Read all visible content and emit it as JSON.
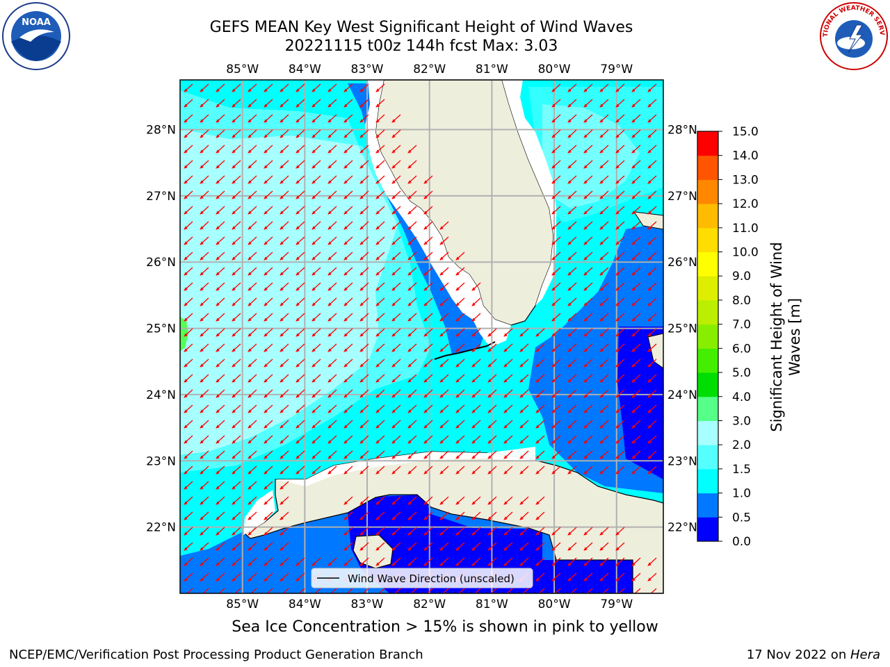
{
  "title_line1": "GEFS MEAN Key West Significant Height of Wind Waves",
  "title_line2": "20221115 t00z 144h fcst   Max: 3.03",
  "logos": {
    "left": "NOAA",
    "right": "NATIONAL WEATHER SERVICE"
  },
  "map": {
    "lon_range": [
      -86.0,
      -78.25
    ],
    "lat_range": [
      21.0,
      28.75
    ],
    "lon_ticks": [
      "85°W",
      "84°W",
      "83°W",
      "82°W",
      "81°W",
      "80°W",
      "79°W"
    ],
    "lat_ticks": [
      "22°N",
      "23°N",
      "24°N",
      "25°N",
      "26°N",
      "27°N",
      "28°N"
    ],
    "legend_label": "Wind Wave Direction (unscaled)",
    "arrow_color": "#ff0000",
    "land_color": "#eeeedd"
  },
  "colorbar": {
    "label_line1": "Significant Height of Wind",
    "label_line2": "Waves [m]",
    "ticks": [
      "0.0",
      "0.5",
      "1.0",
      "1.5",
      "2.0",
      "3.0",
      "4.0",
      "5.0",
      "6.0",
      "7.0",
      "8.0",
      "9.0",
      "10.0",
      "11.0",
      "12.0",
      "13.0",
      "14.0",
      "15.0"
    ],
    "colors": [
      "#0000ff",
      "#0078ff",
      "#00ffff",
      "#55ffff",
      "#a8ffff",
      "#55ff88",
      "#00dd00",
      "#44ee00",
      "#88ee00",
      "#bbee00",
      "#ddee00",
      "#ffff00",
      "#ffdd00",
      "#ffbb00",
      "#ff8800",
      "#ff5500",
      "#ff0000"
    ]
  },
  "note": "Sea Ice Concentration > 15% is shown in pink to yellow",
  "footer_left": "NCEP/EMC/Verification Post Processing Product Generation Branch",
  "footer_date": "17 Nov 2022 on ",
  "footer_machine": "Hera"
}
